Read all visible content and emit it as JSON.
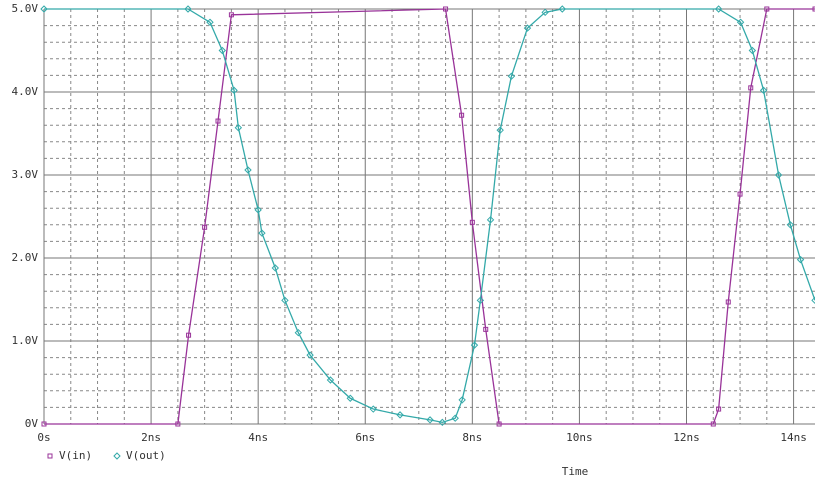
{
  "chart_data": {
    "type": "line",
    "xlabel": "Time",
    "xlim": [
      0,
      14.4
    ],
    "ylim": [
      0,
      5
    ],
    "xticks": [
      {
        "value": 0,
        "label": "0s"
      },
      {
        "value": 2,
        "label": "2ns"
      },
      {
        "value": 4,
        "label": "4ns"
      },
      {
        "value": 6,
        "label": "6ns"
      },
      {
        "value": 8,
        "label": "8ns"
      },
      {
        "value": 10,
        "label": "10ns"
      },
      {
        "value": 12,
        "label": "12ns"
      },
      {
        "value": 14,
        "label": "14ns"
      }
    ],
    "yticks": [
      {
        "value": 0,
        "label": "0V"
      },
      {
        "value": 1,
        "label": "1.0V"
      },
      {
        "value": 2,
        "label": "2.0V"
      },
      {
        "value": 3,
        "label": "3.0V"
      },
      {
        "value": 4,
        "label": "4.0V"
      },
      {
        "value": 5,
        "label": "5.0V"
      }
    ],
    "grid": true,
    "minor_grid": true,
    "legend": "bottom-left",
    "series": [
      {
        "name": "V(in)",
        "color": "#993399",
        "marker": "square",
        "x": [
          0,
          2.5,
          2.7,
          3.0,
          3.25,
          3.5,
          7.5,
          7.8,
          8.0,
          8.25,
          8.5,
          12.5,
          12.6,
          12.78,
          13.0,
          13.2,
          13.5,
          14.4
        ],
        "values": [
          0,
          0,
          1.07,
          2.37,
          3.65,
          4.93,
          5,
          3.72,
          2.43,
          1.14,
          0,
          0,
          0.18,
          1.47,
          2.77,
          4.05,
          5,
          5
        ]
      },
      {
        "name": "V(out)",
        "color": "#33a9a9",
        "marker": "diamond",
        "x": [
          0,
          2.69,
          3.1,
          3.33,
          3.55,
          3.63,
          3.81,
          4.0,
          4.07,
          4.32,
          4.5,
          4.75,
          4.97,
          5.35,
          5.72,
          6.15,
          6.65,
          7.21,
          7.44,
          7.68,
          7.81,
          8.04,
          8.15,
          8.34,
          8.52,
          8.73,
          9.03,
          9.36,
          9.68,
          12.6,
          13.01,
          13.23,
          13.44,
          13.72,
          13.94,
          14.13,
          14.4
        ],
        "values": [
          5,
          5,
          4.84,
          4.5,
          4.02,
          3.57,
          3.06,
          2.58,
          2.3,
          1.88,
          1.49,
          1.1,
          0.83,
          0.53,
          0.31,
          0.18,
          0.11,
          0.05,
          0.02,
          0.07,
          0.29,
          0.95,
          1.49,
          2.46,
          3.54,
          4.19,
          4.77,
          4.96,
          5,
          5,
          4.84,
          4.5,
          4.02,
          3.0,
          2.4,
          1.98,
          1.49
        ]
      }
    ]
  }
}
